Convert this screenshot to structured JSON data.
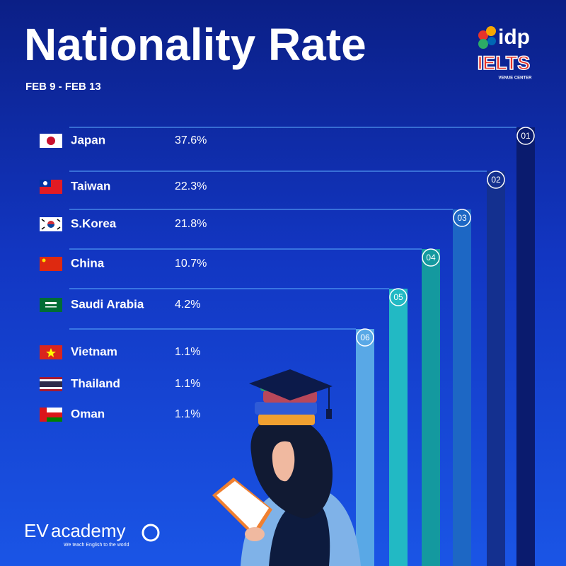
{
  "header": {
    "title": "Nationality Rate",
    "subtitle": "FEB 9 - FEB 13"
  },
  "logo_top": {
    "brand": "idp",
    "product": "IELTS",
    "tagline": "VENUE CENTER"
  },
  "logo_bottom": {
    "brand_prefix": "EV",
    "brand": "academy",
    "tagline": "We teach English to the world"
  },
  "table": {
    "rows": [
      [
        "Japan",
        "37.6%"
      ],
      [
        "Taiwan",
        "22.3%"
      ],
      [
        "S.Korea",
        "21.8%"
      ],
      [
        "China",
        "10.7%"
      ],
      [
        "Saudi Arabia",
        "4.2%"
      ],
      [
        "Vietnam",
        "1.1%"
      ],
      [
        "Thailand",
        "1.1%"
      ],
      [
        "Oman",
        "1.1%"
      ]
    ]
  },
  "ranks": [
    "01",
    "02",
    "03",
    "04",
    "05",
    "06"
  ]
}
